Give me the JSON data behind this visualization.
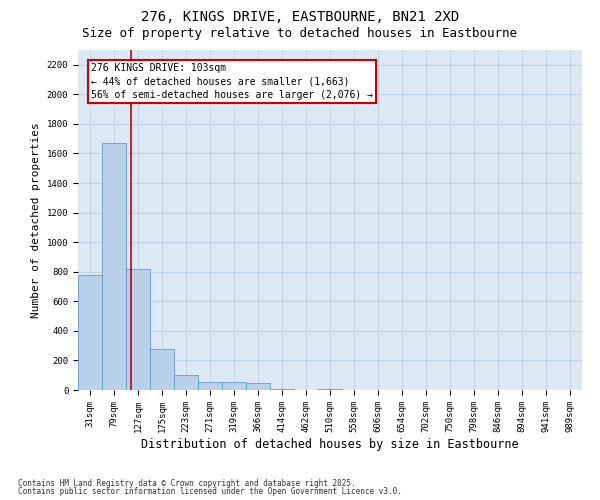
{
  "title1": "276, KINGS DRIVE, EASTBOURNE, BN21 2XD",
  "title2": "Size of property relative to detached houses in Eastbourne",
  "xlabel": "Distribution of detached houses by size in Eastbourne",
  "ylabel": "Number of detached properties",
  "bins": [
    "31sqm",
    "79sqm",
    "127sqm",
    "175sqm",
    "223sqm",
    "271sqm",
    "319sqm",
    "366sqm",
    "414sqm",
    "462sqm",
    "510sqm",
    "558sqm",
    "606sqm",
    "654sqm",
    "702sqm",
    "750sqm",
    "798sqm",
    "846sqm",
    "894sqm",
    "941sqm",
    "989sqm"
  ],
  "values": [
    780,
    1670,
    820,
    280,
    100,
    55,
    55,
    45,
    5,
    0,
    5,
    0,
    0,
    0,
    0,
    0,
    0,
    0,
    0,
    0,
    0
  ],
  "bar_color": "#b8d0ea",
  "bar_edge_color": "#6699cc",
  "grid_color": "#c0d4e8",
  "bg_color": "#dce9f5",
  "vline_x_index": 1.72,
  "vline_color": "#cc0000",
  "annotation_text": "276 KINGS DRIVE: 103sqm\n← 44% of detached houses are smaller (1,663)\n56% of semi-detached houses are larger (2,076) →",
  "ylim": [
    0,
    2300
  ],
  "yticks": [
    0,
    200,
    400,
    600,
    800,
    1000,
    1200,
    1400,
    1600,
    1800,
    2000,
    2200
  ],
  "footer1": "Contains HM Land Registry data © Crown copyright and database right 2025.",
  "footer2": "Contains public sector information licensed under the Open Government Licence v3.0.",
  "title_fontsize": 10,
  "subtitle_fontsize": 9,
  "tick_fontsize": 6.5,
  "ylabel_fontsize": 8,
  "xlabel_fontsize": 8.5,
  "annot_fontsize": 7,
  "footer_fontsize": 5.5
}
